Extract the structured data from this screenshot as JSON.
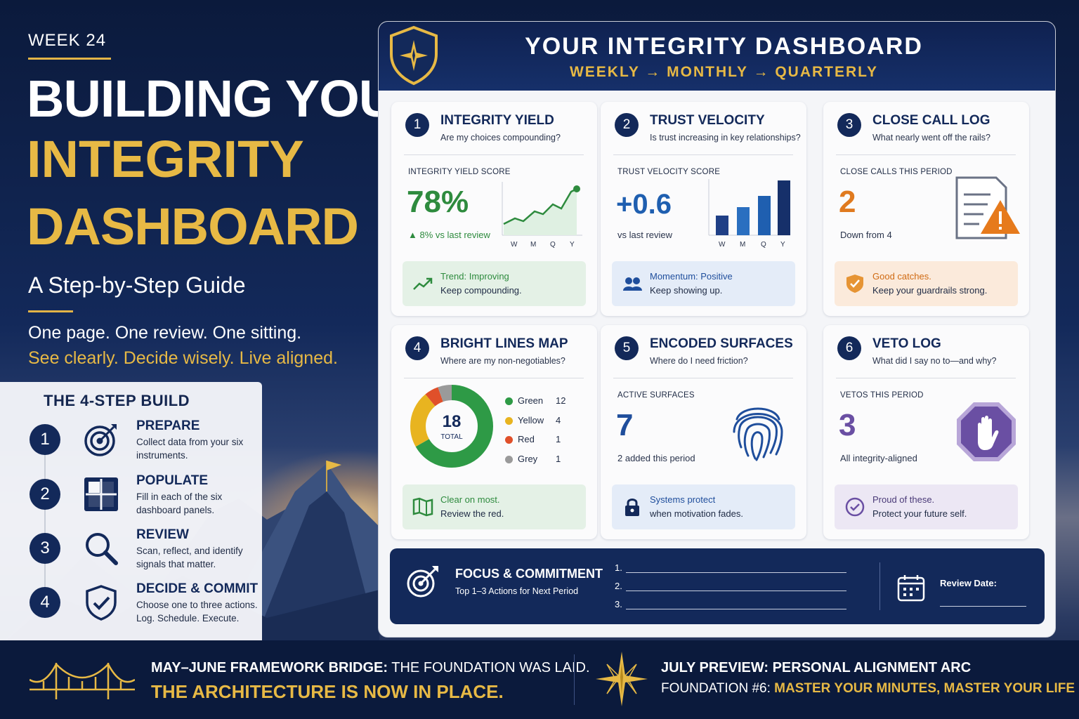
{
  "hero": {
    "week": "WEEK 24",
    "title_line1": "BUILDING YOUR",
    "title_line2": "INTEGRITY",
    "title_line3": "DASHBOARD",
    "subtitle": "A Step-by-Step Guide",
    "tagline1": "One page. One review. One sitting.",
    "tagline2": "See clearly. Decide wisely. Live aligned."
  },
  "steps": {
    "title": "THE 4-STEP BUILD",
    "items": [
      {
        "num": "1",
        "head": "PREPARE",
        "desc": "Collect data from your six instruments.",
        "icon": "target-icon"
      },
      {
        "num": "2",
        "head": "POPULATE",
        "desc": "Fill in each of the six dashboard panels.",
        "icon": "grid-icon"
      },
      {
        "num": "3",
        "head": "REVIEW",
        "desc": "Scan, reflect, and identify signals that matter.",
        "icon": "magnifier-icon"
      },
      {
        "num": "4",
        "head": "DECIDE & COMMIT",
        "desc": "Choose one to three actions. Log. Schedule. Execute.",
        "icon": "shield-check-icon"
      }
    ]
  },
  "dashboard": {
    "title": "YOUR INTEGRITY DASHBOARD",
    "subtitle": "WEEKLY → MONTHLY → QUARTERLY",
    "cards": [
      {
        "num": "1",
        "title": "INTEGRITY YIELD",
        "question": "Are my choices compounding?",
        "label": "INTEGRITY YIELD SCORE",
        "value": "78%",
        "note": "▲ 8% vs last review",
        "foot1": "Trend: Improving",
        "foot2": "Keep compounding.",
        "accent": "#2e8b3e"
      },
      {
        "num": "2",
        "title": "TRUST VELOCITY",
        "question": "Is trust increasing in key relationships?",
        "label": "TRUST VELOCITY SCORE",
        "value": "+0.6",
        "note": "vs last review",
        "foot1": "Momentum: Positive",
        "foot2": "Keep showing up.",
        "accent": "#1f5fb0"
      },
      {
        "num": "3",
        "title": "CLOSE CALL LOG",
        "question": "What nearly went off the rails?",
        "label": "CLOSE CALLS THIS PERIOD",
        "value": "2",
        "note": "Down from 4",
        "foot1": "Good catches.",
        "foot2": "Keep your guardrails strong.",
        "accent": "#e07a1f"
      },
      {
        "num": "4",
        "title": "BRIGHT LINES MAP",
        "question": "Where are my non-negotiables?",
        "foot1": "Clear on most.",
        "foot2": "Review the red.",
        "accent": "#2e8b3e"
      },
      {
        "num": "5",
        "title": "ENCODED SURFACES",
        "question": "Where do I need friction?",
        "label": "ACTIVE SURFACES",
        "value": "7",
        "note": "2 added this period",
        "foot1": "Systems protect",
        "foot2": "when motivation fades.",
        "accent": "#1f4e9c"
      },
      {
        "num": "6",
        "title": "VETO LOG",
        "question": "What did I say no to—and why?",
        "label": "VETOS THIS PERIOD",
        "value": "3",
        "note": "All integrity-aligned",
        "foot1": "Proud of these.",
        "foot2": "Protect your future self.",
        "accent": "#6a4fa3"
      }
    ],
    "sparkline_ticks": [
      "W",
      "M",
      "Q",
      "Y"
    ],
    "donut": {
      "total": "18",
      "total_label": "TOTAL",
      "legend": [
        {
          "name": "Green",
          "value": 12,
          "color": "#2e9a46"
        },
        {
          "name": "Yellow",
          "value": 4,
          "color": "#e8b420"
        },
        {
          "name": "Red",
          "value": 1,
          "color": "#e0502a"
        },
        {
          "name": "Grey",
          "value": 1,
          "color": "#9a9a9a"
        }
      ]
    },
    "focus": {
      "title": "FOCUS & COMMITMENT",
      "subtitle": "Top 1–3 Actions for Next Period",
      "lines": [
        "1.",
        "2.",
        "3."
      ],
      "review_label": "Review Date:"
    }
  },
  "footer": {
    "left_bold": "MAY–JUNE FRAMEWORK BRIDGE:",
    "left_rest": " THE FOUNDATION WAS LAID.",
    "left_line2": "THE ARCHITECTURE IS NOW IN PLACE.",
    "right_line1": "JULY PREVIEW: PERSONAL ALIGNMENT ARC",
    "right_prefix": "FOUNDATION #6: ",
    "right_gold": "MASTER YOUR MINUTES, MASTER YOUR LIFE"
  }
}
